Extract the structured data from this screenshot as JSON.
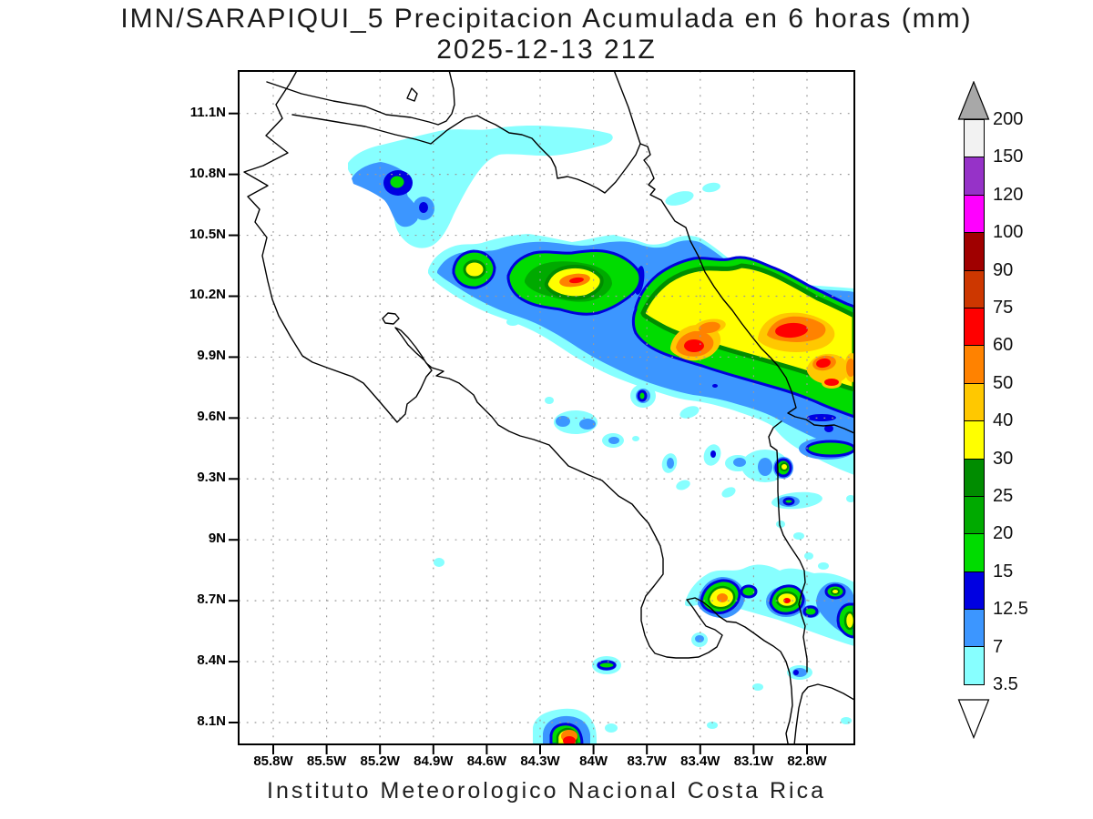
{
  "title": {
    "line1": "IMN/SARAPIQUI_5 Precipitacion Acumulada en 6 horas (mm)",
    "line2": "2025-12-13 21Z"
  },
  "footer": {
    "text": "Instituto Meteorologico Nacional Costa Rica"
  },
  "map": {
    "region": "Costa Rica",
    "lat_ticks": [
      "11.1N",
      "10.8N",
      "10.5N",
      "10.2N",
      "9.9N",
      "9.6N",
      "9.3N",
      "9N",
      "8.7N",
      "8.4N",
      "8.1N"
    ],
    "lon_ticks": [
      "85.8W",
      "85.5W",
      "85.2W",
      "84.9W",
      "84.6W",
      "84.3W",
      "84W",
      "83.7W",
      "83.4W",
      "83.1W",
      "82.8W"
    ],
    "grid_color": "#9a9a9a",
    "coast_color": "#000000",
    "frame_color": "#000000"
  },
  "colorbar": {
    "unit": "mm",
    "levels": [
      "200",
      "150",
      "120",
      "100",
      "90",
      "75",
      "60",
      "50",
      "40",
      "30",
      "25",
      "20",
      "15",
      "12.5",
      "7",
      "3.5"
    ],
    "segments": [
      {
        "range": "150-200",
        "color": "#F2F2F2"
      },
      {
        "range": "120-150",
        "color": "#9632C8"
      },
      {
        "range": "100-120",
        "color": "#FF00FF"
      },
      {
        "range": "90-100",
        "color": "#A00000"
      },
      {
        "range": "75-90",
        "color": "#CD3700"
      },
      {
        "range": "60-75",
        "color": "#FF0000"
      },
      {
        "range": "50-60",
        "color": "#FF8200"
      },
      {
        "range": "40-50",
        "color": "#FFC800"
      },
      {
        "range": "30-40",
        "color": "#FFFF00"
      },
      {
        "range": "25-30",
        "color": "#008C00"
      },
      {
        "range": "20-25",
        "color": "#00AA00"
      },
      {
        "range": "15-20",
        "color": "#00DC00"
      },
      {
        "range": "12.5-15",
        "color": "#0000E1"
      },
      {
        "range": "7-12.5",
        "color": "#3C96FF"
      },
      {
        "range": "3.5-7",
        "color": "#87FFFF"
      }
    ],
    "over_arrow_color": "#A8A8A8",
    "under_arrow_color": "#FFFFFF"
  },
  "chart_data": {
    "type": "heatmap",
    "title": "IMN/SARAPIQUI_5 Precipitacion Acumulada en 6 horas (mm) 2025-12-13 21Z",
    "xlabel_ticks": [
      "85.8W",
      "85.5W",
      "85.2W",
      "84.9W",
      "84.6W",
      "84.3W",
      "84W",
      "83.7W",
      "83.4W",
      "83.1W",
      "82.8W"
    ],
    "ylabel_ticks": [
      "11.1N",
      "10.8N",
      "10.5N",
      "10.2N",
      "9.9N",
      "9.6N",
      "9.3N",
      "9N",
      "8.7N",
      "8.4N",
      "8.1N"
    ],
    "scale_levels_mm": [
      3.5,
      7,
      12.5,
      15,
      20,
      25,
      30,
      40,
      50,
      60,
      75,
      90,
      100,
      120,
      150,
      200
    ],
    "main_features": [
      {
        "desc": "NW cell near 10.75N 85.1W",
        "max_mm": "15-20"
      },
      {
        "desc": "Diagonal band from 10.35N 84.8W to 9.8N 82.6W along Caribbean slope",
        "max_mm": "60-75"
      },
      {
        "desc": "Red cores near 9.9N 83.35W and 9.9N 83.0W",
        "max_mm": "60-75"
      },
      {
        "desc": "Cell cluster near 8.7N between 83.4W and 82.8W",
        "max_mm": "60-75"
      },
      {
        "desc": "Cell at 8.05N 84.15W (south edge)",
        "max_mm": "60-75"
      },
      {
        "desc": "Small cell 8.4N 84.0W",
        "max_mm": "15-20"
      }
    ]
  }
}
